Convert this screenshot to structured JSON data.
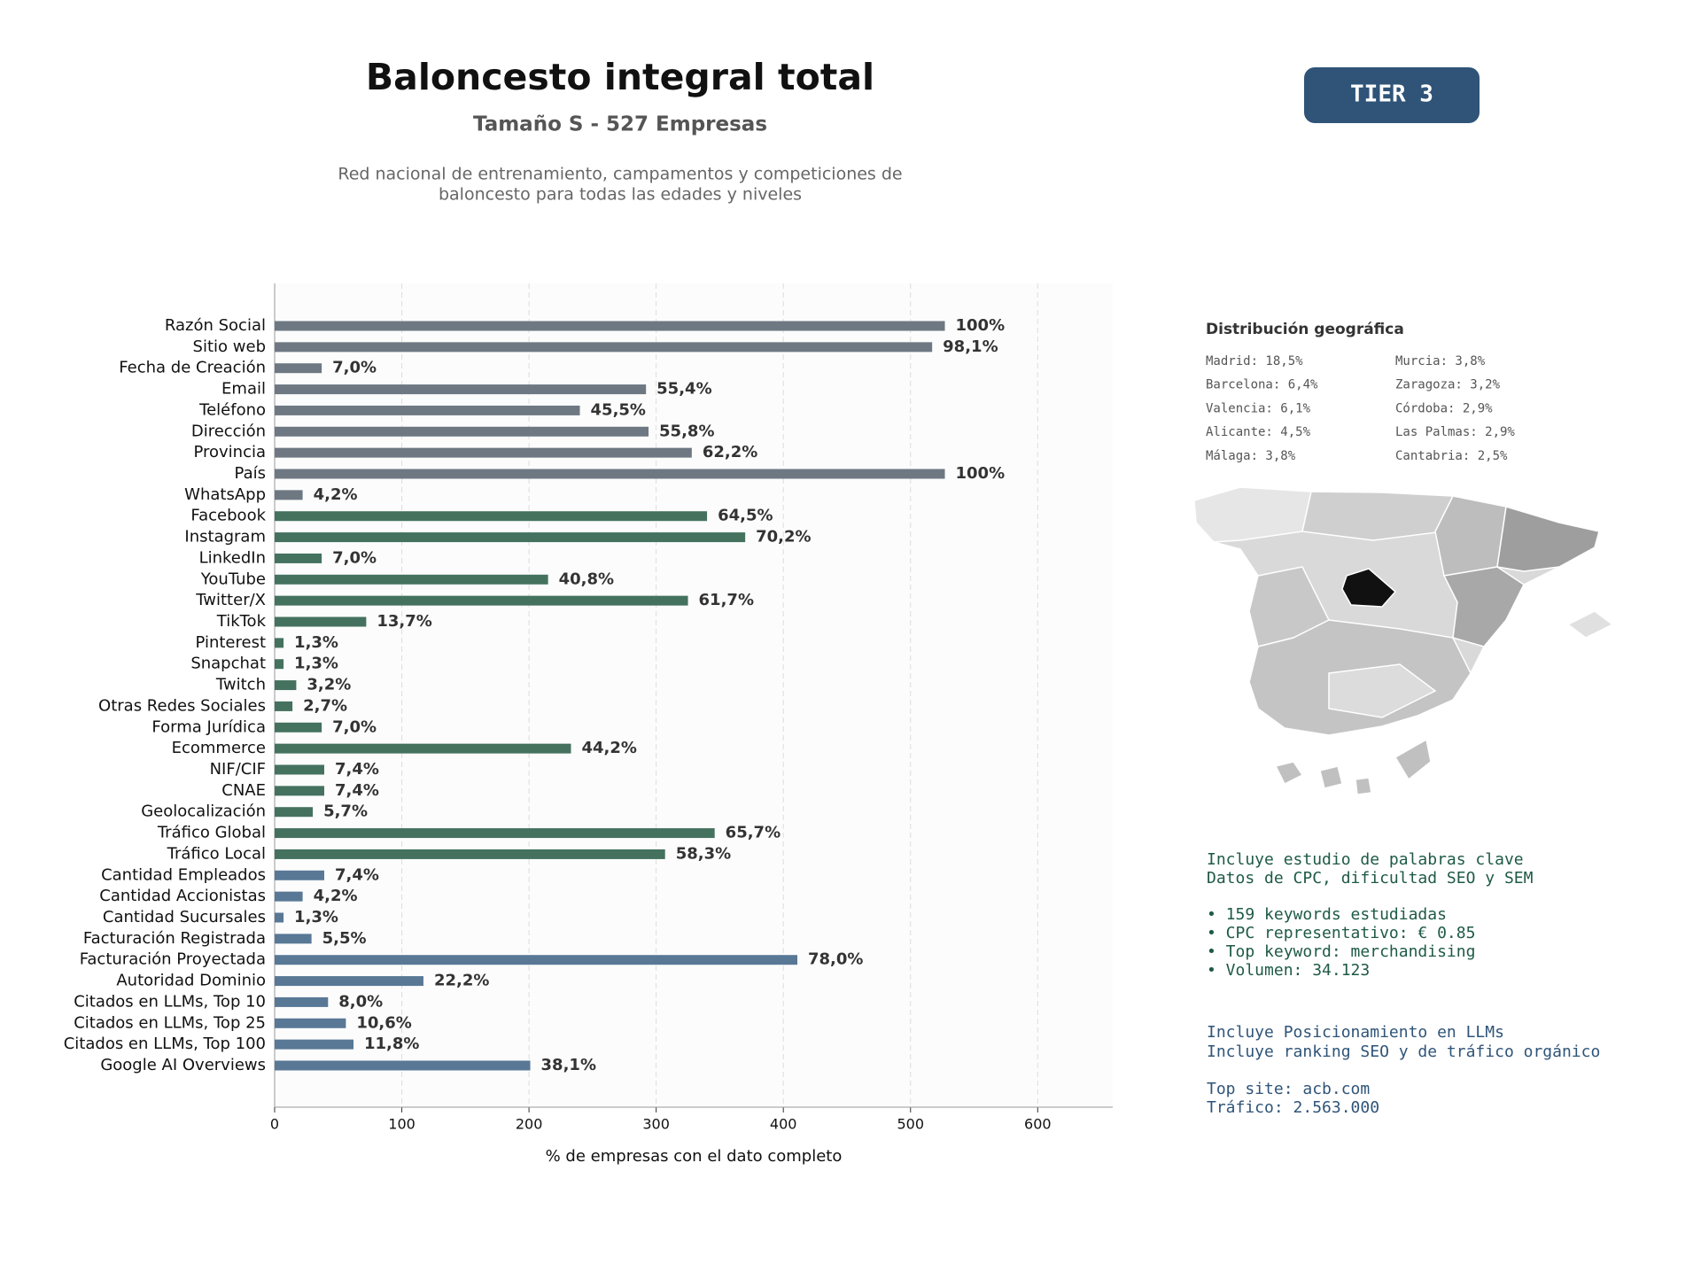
{
  "chart_data": {
    "type": "bar",
    "orientation": "horizontal",
    "title": "Baloncesto integral total",
    "subtitle": "Tamaño S - 527 Empresas",
    "description": [
      "Red nacional de entrenamiento, campamentos y competiciones de",
      "baloncesto para todas las edades y niveles"
    ],
    "xlabel": "% de empresas con el dato completo",
    "categories": [
      "Razón Social",
      "Sitio web",
      "Fecha de Creación",
      "Email",
      "Teléfono",
      "Dirección",
      "Provincia",
      "País",
      "WhatsApp",
      "Facebook",
      "Instagram",
      "LinkedIn",
      "YouTube",
      "Twitter/X",
      "TikTok",
      "Pinterest",
      "Snapchat",
      "Twitch",
      "Otras Redes Sociales",
      "Forma Jurídica",
      "Ecommerce",
      "NIF/CIF",
      "CNAE",
      "Geolocalización",
      "Tráfico Global",
      "Tráfico Local",
      "Cantidad Empleados",
      "Cantidad Accionistas",
      "Cantidad Sucursales",
      "Facturación Registrada",
      "Facturación Proyectada",
      "Autoridad Dominio",
      "Citados en LLMs, Top 10",
      "Citados en LLMs, Top 25",
      "Citados en LLMs, Top 100",
      "Google AI Overviews"
    ],
    "values": [
      527,
      517,
      37,
      292,
      240,
      294,
      328,
      527,
      22,
      340,
      370,
      37,
      215,
      325,
      72,
      7,
      7,
      17,
      14,
      37,
      233,
      39,
      39,
      30,
      346,
      307,
      39,
      22,
      7,
      29,
      411,
      117,
      42,
      56,
      62,
      201
    ],
    "value_labels": [
      "100%",
      "98,1%",
      "7,0%",
      "55,4%",
      "45,5%",
      "55,8%",
      "62,2%",
      "100%",
      "4,2%",
      "64,5%",
      "70,2%",
      "7,0%",
      "40,8%",
      "61,7%",
      "13,7%",
      "1,3%",
      "1,3%",
      "3,2%",
      "2,7%",
      "7,0%",
      "44,2%",
      "7,4%",
      "7,4%",
      "5,7%",
      "65,7%",
      "58,3%",
      "7,4%",
      "4,2%",
      "1,3%",
      "5,5%",
      "78,0%",
      "22,2%",
      "8,0%",
      "10,6%",
      "11,8%",
      "38,1%"
    ],
    "colors": [
      "#6e7883",
      "#6e7883",
      "#6e7883",
      "#6e7883",
      "#6e7883",
      "#6e7883",
      "#6e7883",
      "#6e7883",
      "#6e7883",
      "#44725f",
      "#44725f",
      "#44725f",
      "#44725f",
      "#44725f",
      "#44725f",
      "#44725f",
      "#44725f",
      "#44725f",
      "#44725f",
      "#44725f",
      "#44725f",
      "#44725f",
      "#44725f",
      "#44725f",
      "#44725f",
      "#44725f",
      "#587896",
      "#587896",
      "#587896",
      "#587896",
      "#587896",
      "#587896",
      "#587896",
      "#587896",
      "#587896",
      "#587896"
    ],
    "xlim": [
      0,
      659
    ],
    "xticks": [
      0,
      100,
      200,
      300,
      400,
      500,
      600
    ],
    "grid": true
  },
  "badge": "TIER 3",
  "geo": {
    "title": "Distribución geográfica",
    "items": [
      "Madrid: 18,5%",
      "Barcelona: 6,4%",
      "Valencia: 6,1%",
      "Alicante: 4,5%",
      "Málaga: 3,8%",
      "Murcia: 3,8%",
      "Zaragoza: 3,2%",
      "Córdoba: 2,9%",
      "Las Palmas: 2,9%",
      "Cantabria: 2,5%"
    ]
  },
  "notes": {
    "keywords": [
      "Incluye estudio de palabras clave",
      "Datos de CPC, dificultad SEO y SEM",
      "• 159 keywords estudiadas",
      "• CPC representativo: € 0.85",
      "• Top keyword: merchandising",
      "• Volumen: 34.123"
    ],
    "llm": [
      "Incluye Posicionamiento en LLMs",
      "Incluye ranking SEO y de tráfico orgánico",
      "Top site: acb.com",
      "Tráfico: 2.563.000"
    ]
  }
}
